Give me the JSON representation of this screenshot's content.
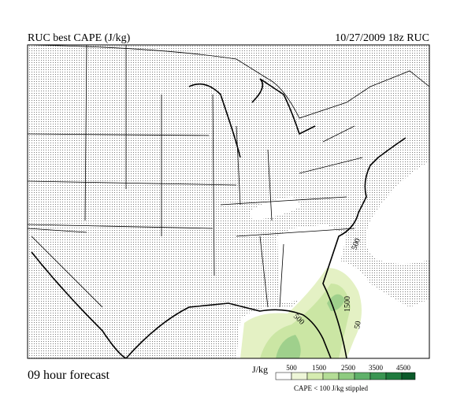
{
  "header": {
    "title": "RUC best CAPE (J/kg)",
    "run": "10/27/2009  18z  RUC"
  },
  "map": {
    "contour_labels": [
      "500",
      "1500",
      "500",
      "50"
    ]
  },
  "footer": {
    "forecast": "09 hour forecast"
  },
  "legend": {
    "unit": "J/kg",
    "ticks": [
      "500",
      "1500",
      "2500",
      "3500",
      "4500"
    ],
    "note": "CAPE < 100 J/kg stippled"
  }
}
